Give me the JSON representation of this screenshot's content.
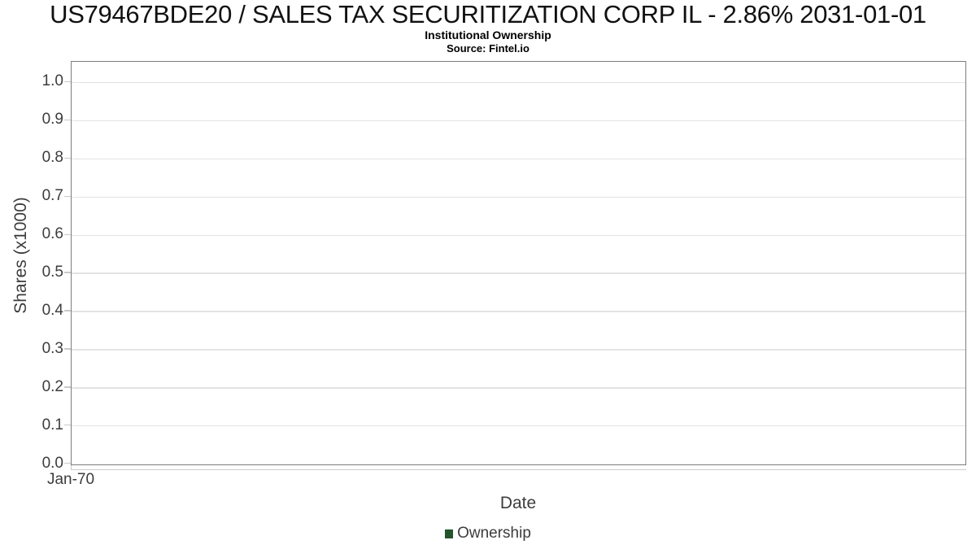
{
  "colors": {
    "ownership_green": "#22542d",
    "plot_border": "#7d7d7d",
    "gridline": "#e3e3e3",
    "tick_mark": "#c9c9c9",
    "axis_text": "#3c3c3c"
  },
  "chart_data": {
    "type": "line",
    "title": "US79467BDE20 / SALES TAX SECURITIZATION CORP IL - 2.86% 2031-01-01",
    "subtitle": "Institutional Ownership",
    "source": "Source: Fintel.io",
    "xlabel": "Date",
    "ylabel": "Shares (x1000)",
    "x_ticks": [
      "Jan-70"
    ],
    "y_ticks": [
      "0.0",
      "0.1",
      "0.2",
      "0.3",
      "0.4",
      "0.5",
      "0.6",
      "0.7",
      "0.8",
      "0.9",
      "1.0"
    ],
    "ylim": [
      0,
      1.053
    ],
    "grid": true,
    "legend_position": "bottom",
    "legend": [
      {
        "label": "Ownership",
        "color": "#22542d"
      }
    ],
    "series": [
      {
        "name": "Ownership",
        "x": [],
        "y": []
      }
    ]
  }
}
